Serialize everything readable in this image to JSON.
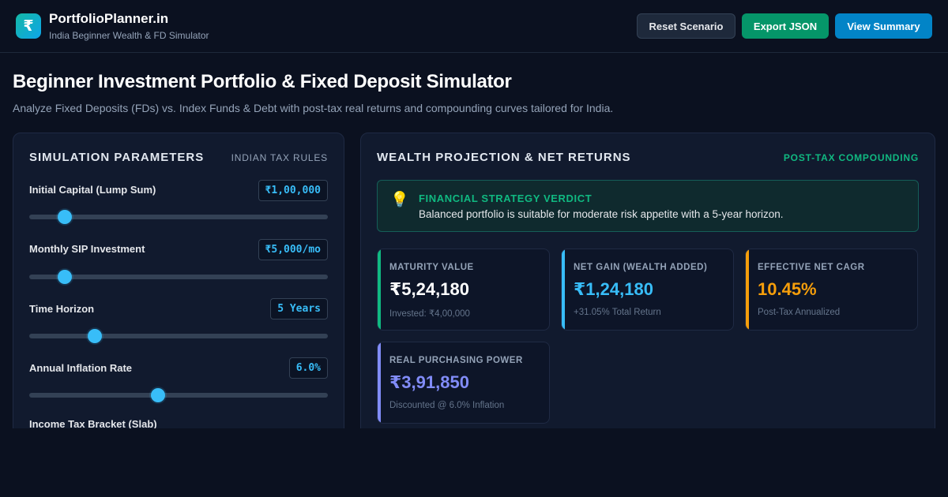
{
  "header": {
    "logo_glyph": "₹",
    "brand_name": "PortfolioPlanner.in",
    "brand_sub": "India Beginner Wealth & FD Simulator",
    "buttons": {
      "reset": "Reset Scenario",
      "export": "Export JSON",
      "summary": "View Summary"
    }
  },
  "page": {
    "title": "Beginner Investment Portfolio & Fixed Deposit Simulator",
    "subtitle": "Analyze Fixed Deposits (FDs) vs. Index Funds & Debt with post-tax real returns and compounding curves tailored for India."
  },
  "params_panel": {
    "title": "SIMULATION PARAMETERS",
    "tag": "INDIAN TAX RULES",
    "params": [
      {
        "label": "Initial Capital (Lump Sum)",
        "value": "₹1,00,000",
        "level": 0.12
      },
      {
        "label": "Monthly SIP Investment",
        "value": "₹5,000/mo",
        "level": 0.12
      },
      {
        "label": "Time Horizon",
        "value": "5 Years",
        "level": 0.22
      },
      {
        "label": "Annual Inflation Rate",
        "value": "6.0%",
        "level": 0.43
      }
    ],
    "next_label": "Income Tax Bracket (Slab)"
  },
  "results_panel": {
    "title": "WEALTH PROJECTION & NET RETURNS",
    "tag": "POST-TAX COMPOUNDING",
    "verdict": {
      "icon": "lightbulb-icon",
      "title": "FINANCIAL STRATEGY VERDICT",
      "text": "Balanced portfolio is suitable for moderate risk appetite with a 5-year horizon."
    },
    "cards": [
      {
        "label": "MATURITY VALUE",
        "value": "₹5,24,180",
        "note": "Invested: ₹4,00,000",
        "accent": "#10b981",
        "value_color": "#ffffff"
      },
      {
        "label": "NET GAIN (WEALTH ADDED)",
        "value": "₹1,24,180",
        "note": "+31.05% Total Return",
        "accent": "#38bdf8",
        "value_color": "#38bdf8"
      },
      {
        "label": "EFFECTIVE NET CAGR",
        "value": "10.45%",
        "note": "Post-Tax Annualized",
        "accent": "#f59e0b",
        "value_color": "#f59e0b"
      },
      {
        "label": "REAL PURCHASING POWER",
        "value": "₹3,91,850",
        "note": "Discounted @ 6.0% Inflation",
        "accent": "#818cf8",
        "value_color": "#818cf8"
      }
    ]
  },
  "colors": {
    "background": "#0b1120",
    "accent_teal": "#10b981",
    "accent_sky": "#38bdf8"
  }
}
